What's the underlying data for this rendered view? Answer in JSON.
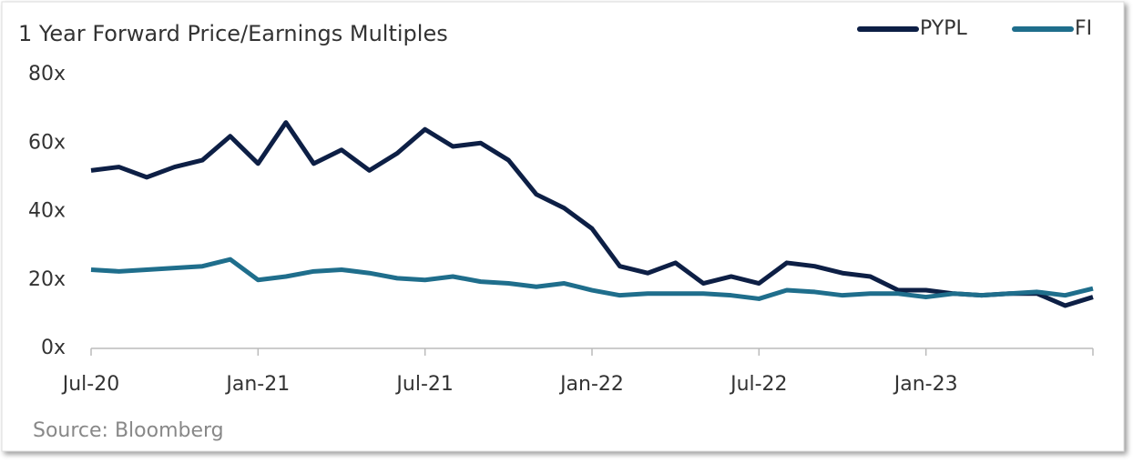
{
  "chart_data": {
    "type": "line",
    "title": "1 Year Forward Price/Earnings Multiples",
    "source": "Source: Bloomberg",
    "x": [
      "2020-07",
      "2020-08",
      "2020-09",
      "2020-10",
      "2020-11",
      "2020-12",
      "2021-01",
      "2021-02",
      "2021-03",
      "2021-04",
      "2021-05",
      "2021-06",
      "2021-07",
      "2021-08",
      "2021-09",
      "2021-10",
      "2021-11",
      "2021-12",
      "2022-01",
      "2022-02",
      "2022-03",
      "2022-04",
      "2022-05",
      "2022-06",
      "2022-07",
      "2022-08",
      "2022-09",
      "2022-10",
      "2022-11",
      "2022-12",
      "2023-01",
      "2023-02",
      "2023-03",
      "2023-04",
      "2023-05",
      "2023-06",
      "2023-07"
    ],
    "series": [
      {
        "name": "PYPL",
        "color": "#0d1f45",
        "values": [
          52,
          53,
          50,
          53,
          55,
          62,
          54,
          66,
          54,
          58,
          52,
          57,
          64,
          59,
          60,
          55,
          45,
          41,
          35,
          24,
          22,
          25,
          19,
          21,
          19,
          25,
          24,
          22,
          21,
          17,
          17,
          16,
          15.5,
          16,
          16,
          12.5,
          15
        ]
      },
      {
        "name": "FI",
        "color": "#1f6e8c",
        "values": [
          23,
          22.5,
          23,
          23.5,
          24,
          26,
          20,
          21,
          22.5,
          23,
          22,
          20.5,
          20,
          21,
          19.5,
          19,
          18,
          19,
          17,
          15.5,
          16,
          16,
          16,
          15.5,
          14.5,
          17,
          16.5,
          15.5,
          16,
          16,
          15,
          16,
          15.5,
          16,
          16.5,
          15.5,
          17.5
        ]
      }
    ],
    "ylim": [
      0,
      80
    ],
    "yticks": [
      {
        "value": 0,
        "label": "0x"
      },
      {
        "value": 20,
        "label": "20x"
      },
      {
        "value": 40,
        "label": "40x"
      },
      {
        "value": 60,
        "label": "60x"
      },
      {
        "value": 80,
        "label": "80x"
      }
    ],
    "xticks": [
      {
        "value": "2020-07",
        "label": "Jul-20"
      },
      {
        "value": "2021-01",
        "label": "Jan-21"
      },
      {
        "value": "2021-07",
        "label": "Jul-21"
      },
      {
        "value": "2022-01",
        "label": "Jan-22"
      },
      {
        "value": "2022-07",
        "label": "Jul-22"
      },
      {
        "value": "2023-01",
        "label": "Jan-23"
      }
    ],
    "legend": "top-right"
  }
}
